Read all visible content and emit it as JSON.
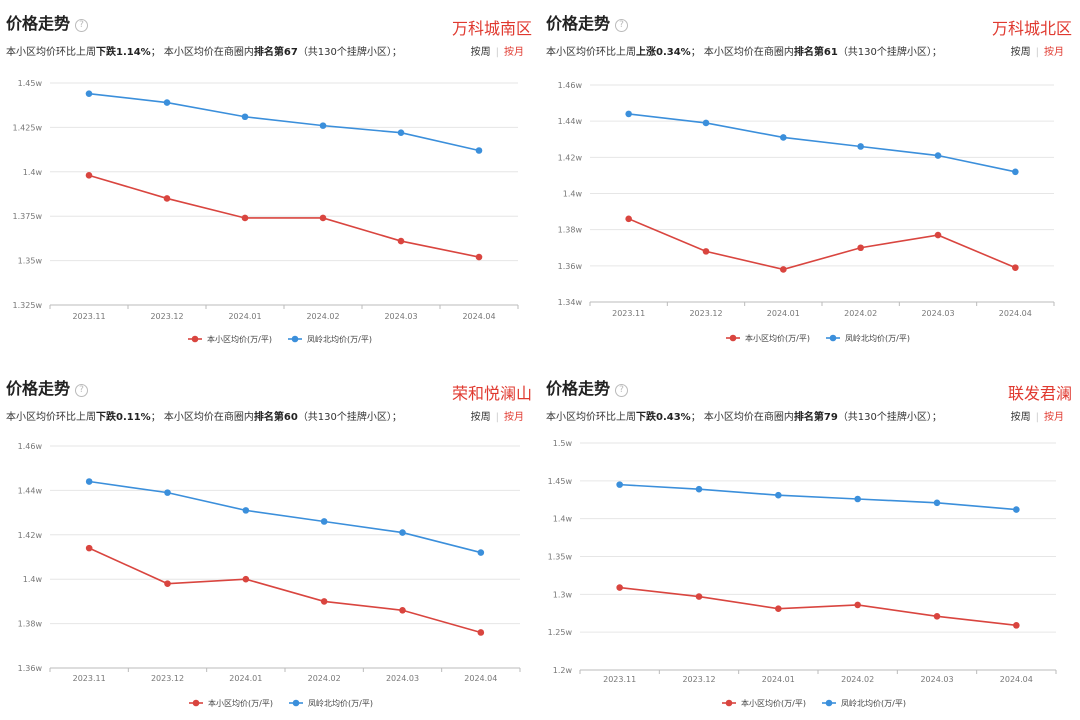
{
  "colors": {
    "series_local": "#d9453f",
    "series_area": "#3b8fdb",
    "accent": "#e0392f"
  },
  "panels": [
    {
      "title": "价格走势",
      "community": "万科城南区",
      "summary": {
        "pre": "本小区均价环比上周",
        "change": "下跌1.14%",
        "mid": "；  本小区均价在商圈内",
        "rank": "排名第67",
        "post": "（共130个挂牌小区）；"
      },
      "toggle": {
        "week": "按周",
        "month": "按月"
      }
    },
    {
      "title": "价格走势",
      "community": "万科城北区",
      "summary": {
        "pre": "本小区均价环比上周",
        "change": "上涨0.34%",
        "mid": "；  本小区均价在商圈内",
        "rank": "排名第61",
        "post": "（共130个挂牌小区）；"
      },
      "toggle": {
        "week": "按周",
        "month": "按月"
      }
    },
    {
      "title": "价格走势",
      "community": "荣和悦澜山",
      "summary": {
        "pre": "本小区均价环比上周",
        "change": "下跌0.11%",
        "mid": "；  本小区均价在商圈内",
        "rank": "排名第60",
        "post": "（共130个挂牌小区）；"
      },
      "toggle": {
        "week": "按周",
        "month": "按月"
      }
    },
    {
      "title": "价格走势",
      "community": "联发君澜",
      "summary": {
        "pre": "本小区均价环比上周",
        "change": "下跌0.43%",
        "mid": "；  本小区均价在商圈内",
        "rank": "排名第79",
        "post": "（共130个挂牌小区）；"
      },
      "toggle": {
        "week": "按周",
        "month": "按月"
      }
    }
  ],
  "chart_data": [
    {
      "type": "line",
      "categories": [
        "2023.11",
        "2023.12",
        "2024.01",
        "2024.02",
        "2024.03",
        "2024.04"
      ],
      "series": [
        {
          "name": "本小区均价(万/平)",
          "values": [
            1.398,
            1.385,
            1.374,
            1.374,
            1.361,
            1.352
          ]
        },
        {
          "name": "凤岭北均价(万/平)",
          "values": [
            1.444,
            1.439,
            1.431,
            1.426,
            1.422,
            1.412
          ]
        }
      ],
      "ylim": [
        1.325,
        1.45
      ],
      "yticks": [
        "1.325w",
        "1.35w",
        "1.375w",
        "1.4w",
        "1.425w",
        "1.45w"
      ],
      "grid": true,
      "legend": "bottom"
    },
    {
      "type": "line",
      "categories": [
        "2023.11",
        "2023.12",
        "2024.01",
        "2024.02",
        "2024.03",
        "2024.04"
      ],
      "series": [
        {
          "name": "本小区均价(万/平)",
          "values": [
            1.386,
            1.368,
            1.358,
            1.37,
            1.377,
            1.359
          ]
        },
        {
          "name": "凤岭北均价(万/平)",
          "values": [
            1.444,
            1.439,
            1.431,
            1.426,
            1.421,
            1.412
          ]
        }
      ],
      "ylim": [
        1.34,
        1.46
      ],
      "yticks": [
        "1.34w",
        "1.36w",
        "1.38w",
        "1.4w",
        "1.42w",
        "1.44w",
        "1.46w"
      ],
      "grid": true,
      "legend": "bottom"
    },
    {
      "type": "line",
      "categories": [
        "2023.11",
        "2023.12",
        "2024.01",
        "2024.02",
        "2024.03",
        "2024.04"
      ],
      "series": [
        {
          "name": "本小区均价(万/平)",
          "values": [
            1.414,
            1.398,
            1.4,
            1.39,
            1.386,
            1.376
          ]
        },
        {
          "name": "凤岭北均价(万/平)",
          "values": [
            1.444,
            1.439,
            1.431,
            1.426,
            1.421,
            1.412
          ]
        }
      ],
      "ylim": [
        1.36,
        1.46
      ],
      "yticks": [
        "1.36w",
        "1.38w",
        "1.4w",
        "1.42w",
        "1.44w",
        "1.46w"
      ],
      "grid": true,
      "legend": "bottom"
    },
    {
      "type": "line",
      "categories": [
        "2023.11",
        "2023.12",
        "2024.01",
        "2024.02",
        "2024.03",
        "2024.04"
      ],
      "series": [
        {
          "name": "本小区均价(万/平)",
          "values": [
            1.309,
            1.297,
            1.281,
            1.286,
            1.271,
            1.259
          ]
        },
        {
          "name": "凤岭北均价(万/平)",
          "values": [
            1.445,
            1.439,
            1.431,
            1.426,
            1.421,
            1.412
          ]
        }
      ],
      "ylim": [
        1.2,
        1.5
      ],
      "yticks": [
        "1.2w",
        "1.25w",
        "1.3w",
        "1.35w",
        "1.4w",
        "1.45w",
        "1.5w"
      ],
      "grid": true,
      "legend": "bottom"
    }
  ]
}
